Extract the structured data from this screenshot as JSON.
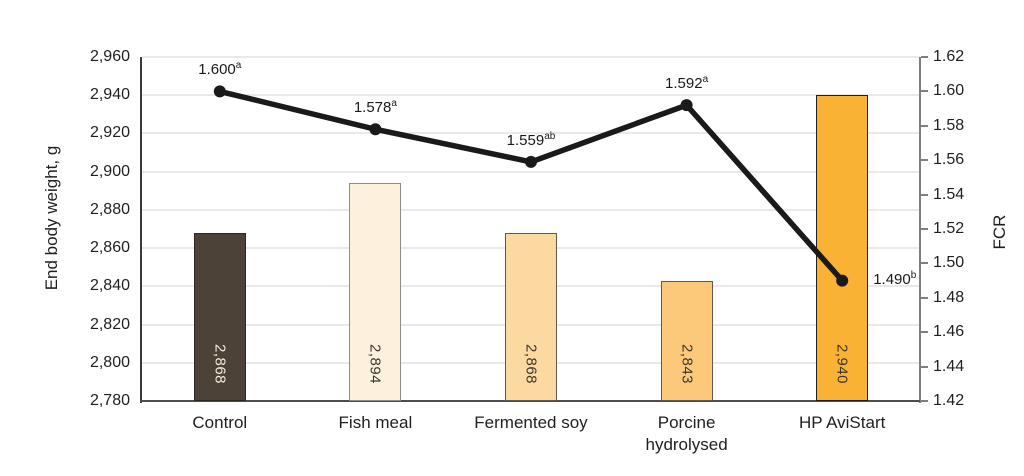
{
  "chart_data": {
    "type": "combo-bar-line",
    "title": "",
    "ylabel_left": "End body weight, g",
    "ylabel_right": "FCR",
    "categories": [
      "Control",
      "Fish meal",
      "Fermented soy",
      "Porcine\nhydrolysed",
      "HP AviStart"
    ],
    "bar_series": {
      "name": "End body weight, g",
      "axis": "left",
      "values": [
        2868,
        2894,
        2868,
        2843,
        2940
      ],
      "value_labels": [
        "2,868",
        "2,894",
        "2,868",
        "2,843",
        "2,940"
      ],
      "bar_colors": [
        "#4d4238",
        "#fdf0dc",
        "#fbd9a0",
        "#fcc97b",
        "#fab234"
      ],
      "bar_border_colors": [
        "#2d271f",
        "#8c8c8c",
        "#5f584e",
        "#5f584e",
        "#1f1f1f"
      ],
      "value_label_colors": [
        "#f3ecdb",
        "#3d362c",
        "#3d362c",
        "#3d362c",
        "#3d362c"
      ]
    },
    "line_series": {
      "name": "FCR",
      "axis": "right",
      "values": [
        1.6,
        1.578,
        1.559,
        1.592,
        1.49
      ],
      "point_labels": [
        {
          "text": "1.600",
          "sup": "a"
        },
        {
          "text": "1.578",
          "sup": "a"
        },
        {
          "text": "1.559",
          "sup": "ab"
        },
        {
          "text": "1.592",
          "sup": "a"
        },
        {
          "text": "1.490",
          "sup": "b"
        }
      ],
      "label_positions": [
        "above",
        "above",
        "above",
        "above",
        "right"
      ],
      "color": "#1a1a1a"
    },
    "left_axis": {
      "min": 2780,
      "max": 2960,
      "step": 20,
      "tick_labels": [
        "2,780",
        "2,800",
        "2,820",
        "2,840",
        "2,860",
        "2,880",
        "2,900",
        "2,920",
        "2,940",
        "2,960"
      ]
    },
    "right_axis": {
      "min": 1.42,
      "max": 1.62,
      "step": 0.02,
      "tick_labels": [
        "1.42",
        "1.44",
        "1.46",
        "1.48",
        "1.50",
        "1.52",
        "1.54",
        "1.56",
        "1.58",
        "1.60",
        "1.62"
      ]
    },
    "grid": true,
    "legend": "none",
    "style": {
      "grid_color": "#e9e9e9",
      "left_axis_color": "#3a3a3a",
      "bottom_axis_color": "#4d4d4d",
      "right_axis_color": "#7f7f7f",
      "text_color": "#1f1f1f",
      "background": "#ffffff"
    }
  }
}
